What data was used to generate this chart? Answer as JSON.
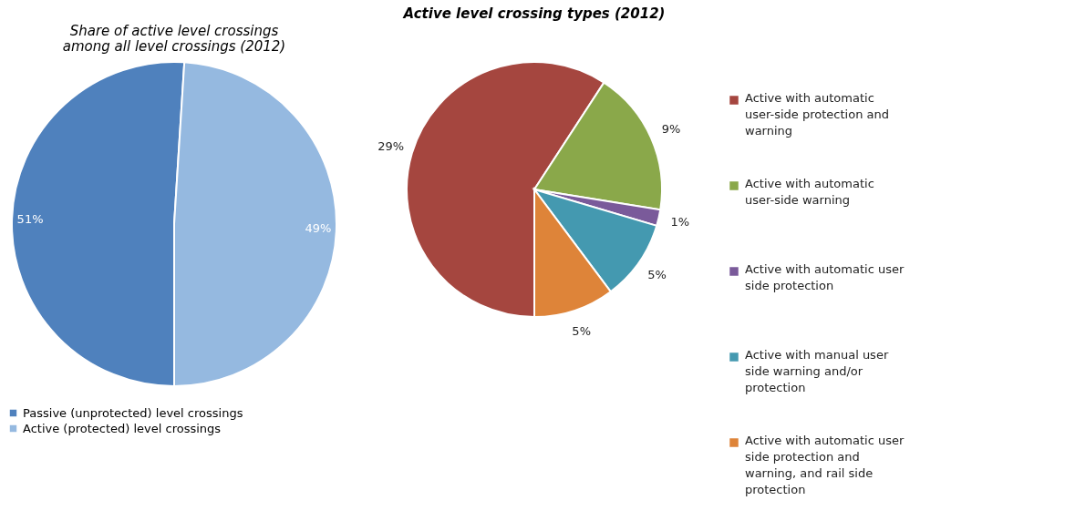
{
  "chart_data": [
    {
      "type": "pie",
      "title": "Share of active level crossings among all level crossings (2012)",
      "categories": [
        "Passive (unprotected) level crossings",
        "Active (protected) level crossings"
      ],
      "values": [
        51,
        49
      ],
      "colors": [
        "#4f81bd",
        "#95b9e0"
      ],
      "value_labels": [
        "51%",
        "49%"
      ],
      "legend": "bottom"
    },
    {
      "type": "pie",
      "title": "Active level crossing types (2012)",
      "categories": [
        "Active with automatic user-side protection and warning",
        "Active with automatic user-side warning",
        "Active with automatic user side protection",
        "Active with manual user side warning and/or protection",
        "Active with automatic user side protection and warning, and rail side protection"
      ],
      "values": [
        29,
        9,
        1,
        5,
        5
      ],
      "colors": [
        "#a5463f",
        "#8aa84a",
        "#7a5a9a",
        "#4499b0",
        "#de8439"
      ],
      "value_labels": [
        "29%",
        "9%",
        "1%",
        "5%",
        "5%"
      ],
      "legend": "right"
    }
  ]
}
